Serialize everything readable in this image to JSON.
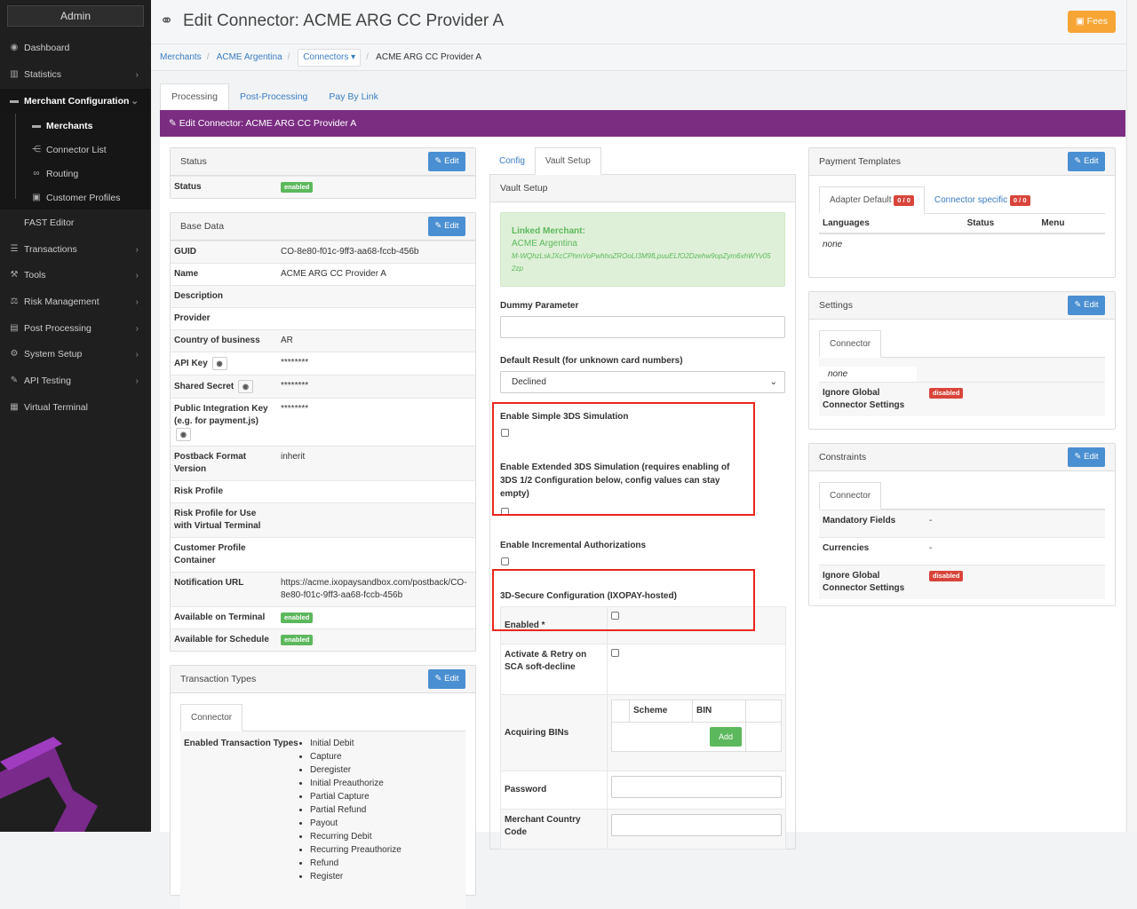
{
  "sidebar": {
    "admin": "Admin",
    "items": [
      {
        "label": "Dashboard",
        "icon": "dashboard-icon",
        "glyph": "◉",
        "chev": false
      },
      {
        "label": "Statistics",
        "icon": "bar-chart-icon",
        "glyph": "▥",
        "chev": true
      },
      {
        "label": "Merchant Configuration",
        "icon": "briefcase-icon",
        "glyph": "▬",
        "chev": true,
        "active": true
      },
      {
        "label": "FAST Editor",
        "icon": "code-icon",
        "glyph": "</>",
        "chev": false
      },
      {
        "label": "Transactions",
        "icon": "list-icon",
        "glyph": "☰",
        "chev": true
      },
      {
        "label": "Tools",
        "icon": "wrench-icon",
        "glyph": "⚒",
        "chev": true
      },
      {
        "label": "Risk Management",
        "icon": "scale-icon",
        "glyph": "⚖",
        "chev": true
      },
      {
        "label": "Post Processing",
        "icon": "database-icon",
        "glyph": "▤",
        "chev": true
      },
      {
        "label": "System Setup",
        "icon": "gear-icon",
        "glyph": "⚙",
        "chev": true
      },
      {
        "label": "API Testing",
        "icon": "flask-icon",
        "glyph": "✎",
        "chev": true
      },
      {
        "label": "Virtual Terminal",
        "icon": "calculator-icon",
        "glyph": "▦",
        "chev": false
      }
    ],
    "sub": [
      {
        "label": "Merchants",
        "icon": "briefcase-icon",
        "glyph": "▬",
        "current": true
      },
      {
        "label": "Connector List",
        "icon": "share-icon",
        "glyph": "⋲"
      },
      {
        "label": "Routing",
        "icon": "link-icon",
        "glyph": "∞"
      },
      {
        "label": "Customer Profiles",
        "icon": "contact-icon",
        "glyph": "▣"
      }
    ]
  },
  "header": {
    "title": "Edit Connector: ACME ARG CC Provider A",
    "fees": "Fees"
  },
  "breadcrumb": {
    "merchants": "Merchants",
    "merchant": "ACME Argentina",
    "connectors": "Connectors",
    "current": "ACME ARG CC Provider A"
  },
  "tabs": [
    "Processing",
    "Post-Processing",
    "Pay By Link"
  ],
  "purple_title": "Edit Connector: ACME ARG CC Provider A",
  "edit_label": "Edit",
  "status": {
    "title": "Status",
    "label": "Status",
    "value": "enabled"
  },
  "base": {
    "title": "Base Data",
    "rows": [
      {
        "k": "GUID",
        "v": "CO-8e80-f01c-9ff3-aa68-fccb-456b"
      },
      {
        "k": "Name",
        "v": "ACME ARG CC Provider A"
      },
      {
        "k": "Description",
        "v": ""
      },
      {
        "k": "Provider",
        "v": ""
      },
      {
        "k": "Country of business",
        "v": "AR"
      },
      {
        "k": "API Key",
        "v": "********",
        "eye": true
      },
      {
        "k": "Shared Secret",
        "v": "********",
        "eye": true
      },
      {
        "k": "Public Integration Key (e.g. for payment.js)",
        "v": "********",
        "eye": true
      },
      {
        "k": "Postback Format Version",
        "v": "inherit"
      },
      {
        "k": "Risk Profile",
        "v": ""
      },
      {
        "k": "Risk Profile for Use with Virtual Terminal",
        "v": ""
      },
      {
        "k": "Customer Profile Container",
        "v": ""
      },
      {
        "k": "Notification URL",
        "v": "https://acme.ixopaysandbox.com/postback/CO-8e80-f01c-9ff3-aa68-fccb-456b"
      },
      {
        "k": "Available on Terminal",
        "v": "enabled",
        "badge": true
      },
      {
        "k": "Available for Schedule",
        "v": "enabled",
        "badge": true
      }
    ]
  },
  "txtypes": {
    "title": "Transaction Types",
    "tab": "Connector",
    "label": "Enabled Transaction Types",
    "items": [
      "Initial Debit",
      "Capture",
      "Deregister",
      "Initial Preauthorize",
      "Partial Capture",
      "Partial Refund",
      "Payout",
      "Recurring Debit",
      "Recurring Preauthorize",
      "Refund",
      "Register"
    ]
  },
  "vault": {
    "tabs": [
      "Config",
      "Vault Setup"
    ],
    "title": "Vault Setup",
    "linked_label": "Linked Merchant:",
    "linked_name": "ACME Argentina",
    "linked_id": "M-WQhzLskJXcCPhmVoPwhhoZROoLI3M9fLpuuELfO2Dzehw9opZym6xhWYv052zp",
    "dummy_label": "Dummy Parameter",
    "dummy_value": "",
    "default_label": "Default Result (for unknown card numbers)",
    "default_value": "Declined",
    "simple3ds": "Enable Simple 3DS Simulation",
    "ext3ds": "Enable Extended 3DS Simulation (requires enabling of 3DS 1/2 Configuration below, config values can stay empty)",
    "incremental": "Enable Incremental Authorizations",
    "tds_title": "3D-Secure Configuration (IXOPAY-hosted)",
    "enabled": "Enabled *",
    "activate": "Activate & Retry on SCA soft-decline",
    "bins": "Acquiring BINs",
    "scheme": "Scheme",
    "bin": "BIN",
    "add": "Add",
    "password": "Password",
    "mcc": "Merchant Country Code"
  },
  "templates": {
    "title": "Payment Templates",
    "tabs": [
      {
        "label": "Adapter Default",
        "count": "0 / 0"
      },
      {
        "label": "Connector specific",
        "count": "0 / 0"
      }
    ],
    "cols": [
      "Languages",
      "Status",
      "Menu"
    ],
    "none": "none"
  },
  "settings": {
    "title": "Settings",
    "tab": "Connector",
    "none": "none",
    "ignore": "Ignore Global Connector Settings",
    "ignore_value": "disabled"
  },
  "constraints": {
    "title": "Constraints",
    "tab": "Connector",
    "rows": [
      {
        "k": "Mandatory Fields",
        "v": "-"
      },
      {
        "k": "Currencies",
        "v": "-"
      }
    ],
    "ignore": "Ignore Global Connector Settings",
    "ignore_value": "disabled"
  },
  "colors": {
    "purple": "#7b2d82",
    "edit": "#4a8fd1",
    "fees": "#f7a535",
    "enabled": "#5cb85c",
    "disabled": "#d9443a",
    "highlight": "#e8261d"
  }
}
